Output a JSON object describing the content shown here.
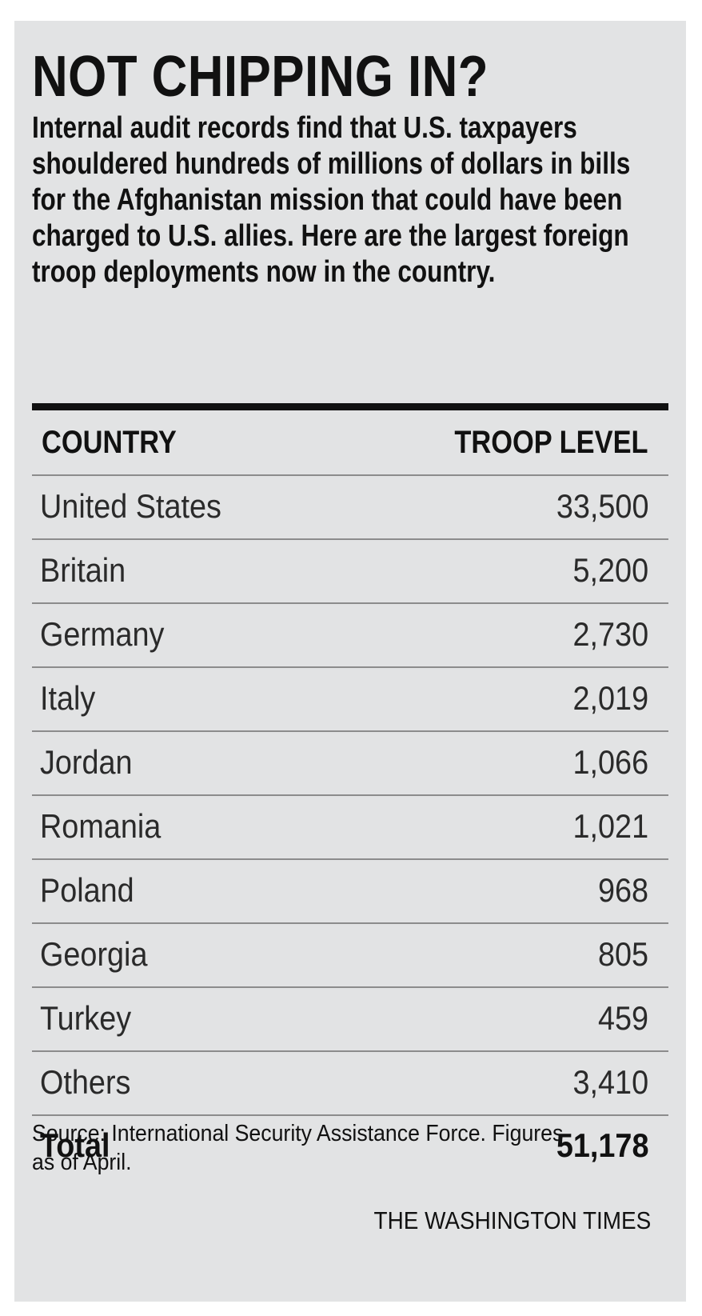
{
  "title": "NOT CHIPPING IN?",
  "subtitle": "Internal audit records find that U.S. taxpayers shouldered hundreds of millions of dollars in bills for the Afghanistan mission that could have been charged to U.S. allies. Here are the largest foreign troop deployments now in the country.",
  "table": {
    "headers": [
      "COUNTRY",
      "TROOP LEVEL"
    ],
    "rows": [
      {
        "country": "United States",
        "troops": "33,500"
      },
      {
        "country": "Britain",
        "troops": "5,200"
      },
      {
        "country": "Germany",
        "troops": "2,730"
      },
      {
        "country": "Italy",
        "troops": "2,019"
      },
      {
        "country": "Jordan",
        "troops": "1,066"
      },
      {
        "country": "Romania",
        "troops": "1,021"
      },
      {
        "country": "Poland",
        "troops": "968"
      },
      {
        "country": "Georgia",
        "troops": "805"
      },
      {
        "country": "Turkey",
        "troops": "459"
      },
      {
        "country": "Others",
        "troops": "3,410"
      }
    ],
    "total_label": "Total",
    "total_value": "51,178"
  },
  "source": "Source: International Security Assistance Force. Figures as of April.",
  "credit": "THE WASHINGTON TIMES",
  "colors": {
    "background": "#e2e3e4",
    "text": "#111111",
    "rule": "#8c8c8c"
  },
  "chart_data": {
    "type": "table",
    "title": "NOT CHIPPING IN?",
    "columns": [
      "COUNTRY",
      "TROOP LEVEL"
    ],
    "categories": [
      "United States",
      "Britain",
      "Germany",
      "Italy",
      "Jordan",
      "Romania",
      "Poland",
      "Georgia",
      "Turkey",
      "Others"
    ],
    "values": [
      33500,
      5200,
      2730,
      2019,
      1066,
      1021,
      968,
      805,
      459,
      3410
    ],
    "total": 51178
  }
}
